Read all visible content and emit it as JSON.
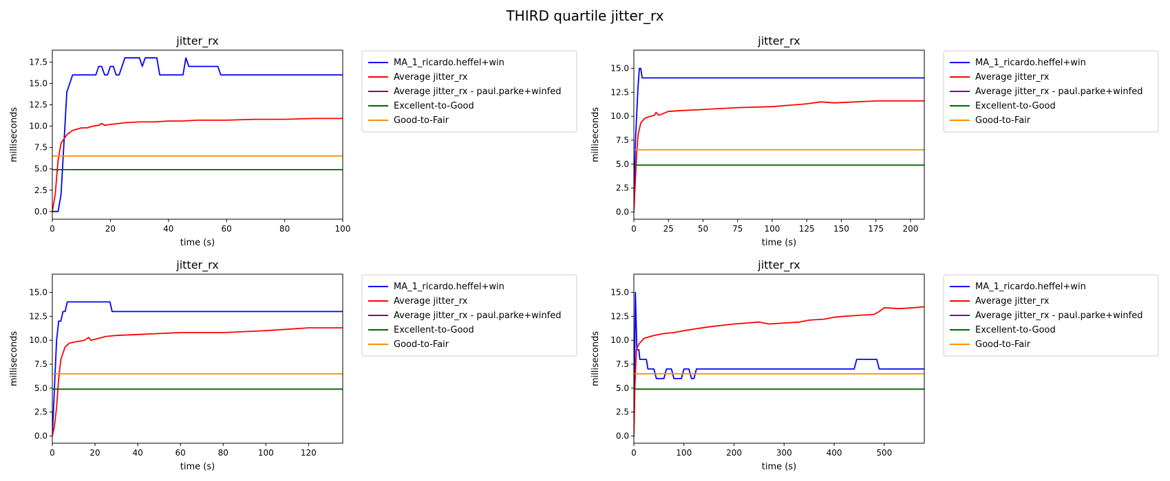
{
  "suptitle": "THIRD quartile jitter_rx",
  "legend_entries": [
    {
      "name": "MA_1_ricardo.heffel+win",
      "color": "#0000ff"
    },
    {
      "name": "Average jitter_rx",
      "color": "#ff0000"
    },
    {
      "name": "Average jitter_rx - paul.parke+winfed",
      "color": "#800080"
    },
    {
      "name": "Excellent-to-Good",
      "color": "#006400"
    },
    {
      "name": "Good-to-Fair",
      "color": "#ff8c00"
    }
  ],
  "chart_data": [
    {
      "type": "line",
      "title": "jitter_rx",
      "xlabel": "time (s)",
      "ylabel": "milliseconds",
      "xlim": [
        0,
        100
      ],
      "ylim": [
        -0.9,
        18.9
      ],
      "xticks": [
        0,
        20,
        40,
        60,
        80,
        100
      ],
      "yticks": [
        0.0,
        2.5,
        5.0,
        7.5,
        10.0,
        12.5,
        15.0,
        17.5
      ],
      "legend_position": "outside-right",
      "series": [
        {
          "name": "MA_1_ricardo.heffel+win",
          "color": "#0000ff",
          "x": [
            0,
            2,
            3,
            4,
            5,
            6,
            7,
            15,
            16,
            17,
            18,
            19,
            20,
            21,
            22,
            23,
            25,
            28,
            30,
            31,
            32,
            33,
            36,
            37,
            45,
            46,
            47,
            57,
            58,
            100
          ],
          "y": [
            0,
            0,
            2,
            8,
            14,
            15,
            16,
            16,
            17,
            17,
            16,
            16,
            17,
            17,
            16,
            16,
            18,
            18,
            18,
            17,
            18,
            18,
            18,
            16,
            16,
            18,
            17,
            17,
            16,
            16
          ]
        },
        {
          "name": "Average jitter_rx",
          "color": "#ff0000",
          "x": [
            0,
            1,
            2,
            3,
            5,
            7,
            10,
            12,
            14,
            16,
            17,
            18,
            20,
            25,
            30,
            35,
            40,
            45,
            50,
            55,
            60,
            70,
            80,
            90,
            100
          ],
          "y": [
            0,
            2,
            6,
            8,
            9,
            9.5,
            9.8,
            9.8,
            10,
            10.1,
            10.3,
            10.1,
            10.2,
            10.4,
            10.5,
            10.5,
            10.6,
            10.6,
            10.7,
            10.7,
            10.7,
            10.8,
            10.8,
            10.9,
            10.9
          ]
        },
        {
          "name": "Excellent-to-Good",
          "color": "#006400",
          "x": [
            0,
            100
          ],
          "y": [
            4.9,
            4.9
          ]
        },
        {
          "name": "Good-to-Fair",
          "color": "#ff8c00",
          "x": [
            0,
            100
          ],
          "y": [
            6.5,
            6.5
          ]
        }
      ]
    },
    {
      "type": "line",
      "title": "jitter_rx",
      "xlabel": "time (s)",
      "ylabel": "milliseconds",
      "xlim": [
        0,
        210
      ],
      "ylim": [
        -0.75,
        16.9
      ],
      "xticks": [
        0,
        25,
        50,
        75,
        100,
        125,
        150,
        175,
        200
      ],
      "yticks": [
        0.0,
        2.5,
        5.0,
        7.5,
        10.0,
        12.5,
        15.0
      ],
      "legend_position": "outside-right",
      "series": [
        {
          "name": "MA_1_ricardo.heffel+win",
          "color": "#0000ff",
          "x": [
            0,
            1,
            3,
            4,
            5,
            6,
            210
          ],
          "y": [
            0,
            7,
            13,
            15,
            15,
            14,
            14
          ]
        },
        {
          "name": "Average jitter_rx",
          "color": "#ff0000",
          "x": [
            0,
            1,
            2,
            3,
            5,
            8,
            12,
            15,
            16,
            18,
            25,
            35,
            50,
            75,
            100,
            125,
            135,
            145,
            175,
            200,
            210
          ],
          "y": [
            0,
            3,
            6,
            8,
            9.3,
            9.8,
            10,
            10.1,
            10.4,
            10.1,
            10.5,
            10.6,
            10.7,
            10.9,
            11,
            11.3,
            11.5,
            11.4,
            11.6,
            11.6,
            11.6
          ]
        },
        {
          "name": "Excellent-to-Good",
          "color": "#006400",
          "x": [
            0,
            210
          ],
          "y": [
            4.9,
            4.9
          ]
        },
        {
          "name": "Good-to-Fair",
          "color": "#ff8c00",
          "x": [
            0,
            210
          ],
          "y": [
            6.5,
            6.5
          ]
        }
      ]
    },
    {
      "type": "line",
      "title": "jitter_rx",
      "xlabel": "time (s)",
      "ylabel": "milliseconds",
      "xlim": [
        0,
        136
      ],
      "ylim": [
        -0.75,
        16.9
      ],
      "xticks": [
        0,
        20,
        40,
        60,
        80,
        100,
        120
      ],
      "yticks": [
        0.0,
        2.5,
        5.0,
        7.5,
        10.0,
        12.5,
        15.0
      ],
      "legend_position": "outside-right",
      "series": [
        {
          "name": "MA_1_ricardo.heffel+win",
          "color": "#0000ff",
          "x": [
            0,
            1,
            2,
            3,
            4,
            5,
            6,
            7,
            27,
            28,
            136
          ],
          "y": [
            0,
            5,
            10,
            12,
            12,
            13,
            13,
            14,
            14,
            13,
            13
          ]
        },
        {
          "name": "Average jitter_rx",
          "color": "#ff0000",
          "x": [
            0,
            1,
            2,
            3,
            4,
            6,
            8,
            10,
            15,
            17,
            18,
            20,
            25,
            30,
            40,
            50,
            60,
            80,
            100,
            120,
            136
          ],
          "y": [
            0,
            1,
            3,
            6,
            8,
            9.3,
            9.7,
            9.8,
            10,
            10.3,
            10,
            10.1,
            10.4,
            10.5,
            10.6,
            10.7,
            10.8,
            10.8,
            11,
            11.3,
            11.3
          ]
        },
        {
          "name": "Excellent-to-Good",
          "color": "#006400",
          "x": [
            0,
            136
          ],
          "y": [
            4.9,
            4.9
          ]
        },
        {
          "name": "Good-to-Fair",
          "color": "#ff8c00",
          "x": [
            0,
            136
          ],
          "y": [
            6.5,
            6.5
          ]
        }
      ]
    },
    {
      "type": "line",
      "title": "jitter_rx",
      "xlabel": "time (s)",
      "ylabel": "milliseconds",
      "xlim": [
        0,
        580
      ],
      "ylim": [
        -0.75,
        16.9
      ],
      "xticks": [
        0,
        100,
        200,
        300,
        400,
        500
      ],
      "yticks": [
        0.0,
        2.5,
        5.0,
        7.5,
        10.0,
        12.5,
        15.0
      ],
      "legend_position": "outside-right",
      "series": [
        {
          "name": "MA_1_ricardo.heffel+win",
          "color": "#0000ff",
          "x": [
            0,
            3,
            6,
            10,
            12,
            14,
            25,
            28,
            40,
            45,
            60,
            65,
            75,
            80,
            95,
            100,
            110,
            115,
            120,
            125,
            130,
            135,
            440,
            445,
            485,
            490,
            580
          ],
          "y": [
            0,
            15,
            9,
            9,
            8,
            8,
            8,
            7,
            7,
            6,
            6,
            7,
            7,
            6,
            6,
            7,
            7,
            6,
            6,
            7,
            7,
            7,
            7,
            8,
            8,
            7,
            7
          ]
        },
        {
          "name": "Average jitter_rx",
          "color": "#ff0000",
          "x": [
            0,
            2,
            5,
            10,
            20,
            40,
            60,
            80,
            100,
            125,
            150,
            200,
            250,
            270,
            300,
            330,
            350,
            380,
            400,
            420,
            450,
            480,
            490,
            500,
            530,
            560,
            580
          ],
          "y": [
            0,
            5,
            9,
            9.6,
            10.2,
            10.5,
            10.7,
            10.8,
            11,
            11.2,
            11.4,
            11.7,
            11.9,
            11.7,
            11.8,
            11.9,
            12.1,
            12.2,
            12.4,
            12.5,
            12.6,
            12.7,
            13,
            13.4,
            13.3,
            13.4,
            13.5
          ]
        },
        {
          "name": "Excellent-to-Good",
          "color": "#006400",
          "x": [
            0,
            580
          ],
          "y": [
            4.9,
            4.9
          ]
        },
        {
          "name": "Good-to-Fair",
          "color": "#ff8c00",
          "x": [
            0,
            580
          ],
          "y": [
            6.5,
            6.5
          ]
        }
      ]
    }
  ]
}
